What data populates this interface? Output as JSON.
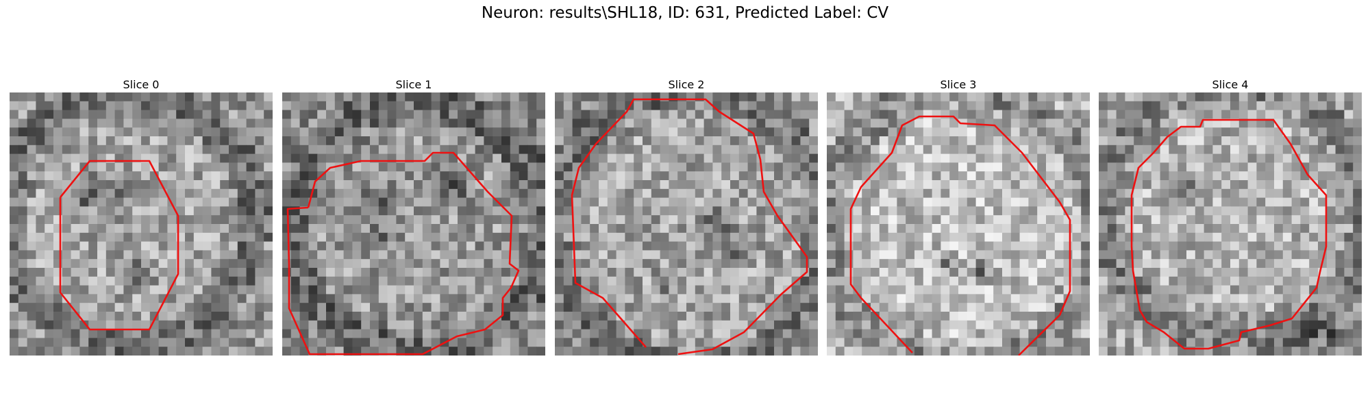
{
  "figure": {
    "title": "Neuron: results\\SHL18, ID: 631, Predicted Label: CV"
  },
  "panels": [
    {
      "title": "Slice 0"
    },
    {
      "title": "Slice 1"
    },
    {
      "title": "Slice 2"
    },
    {
      "title": "Slice 3"
    },
    {
      "title": "Slice 4"
    }
  ],
  "colors": {
    "contour": "#ee1111"
  }
}
